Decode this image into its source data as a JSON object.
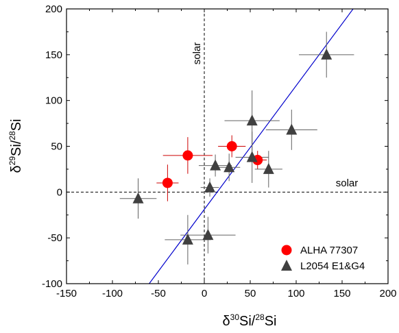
{
  "chart_data": {
    "type": "scatter",
    "xlabel": {
      "delta": "δ",
      "sup1": "30",
      "mid": "Si/",
      "sup2": "28",
      "end": "Si"
    },
    "ylabel": {
      "delta": "δ",
      "sup1": "29",
      "mid": "Si/",
      "sup2": "28",
      "end": "Si"
    },
    "xlim": [
      -150,
      200
    ],
    "ylim": [
      -100,
      200
    ],
    "xticks": [
      -150,
      -100,
      -50,
      0,
      50,
      100,
      150,
      200
    ],
    "yticks": [
      -100,
      -50,
      0,
      50,
      100,
      150,
      200
    ],
    "xtick_labels": [
      "-150",
      "-100",
      "-50",
      "0",
      "50",
      "100",
      "150",
      "200"
    ],
    "ytick_labels": [
      "-100",
      "-50",
      "0",
      "50",
      "100",
      "150",
      "200"
    ],
    "grid": false,
    "legend_position": "bottom-right",
    "annotations": {
      "vertical_solar": "solar",
      "horizontal_solar": "solar"
    },
    "reference_lines": {
      "vertical_x": 0,
      "horizontal_y": 0
    },
    "fit_line": {
      "color": "#0000cc",
      "points": [
        [
          -60,
          -100
        ],
        [
          162,
          200
        ]
      ]
    },
    "series": [
      {
        "name": "ALHA 77307",
        "marker": "circle",
        "color": "#ff0000",
        "error_color": "#cc0000",
        "points": [
          {
            "x": -40,
            "y": 10,
            "xerr": 12,
            "yerr": 20
          },
          {
            "x": -18,
            "y": 40,
            "xerr": 27,
            "yerr": 20
          },
          {
            "x": 30,
            "y": 50,
            "xerr": 15,
            "yerr": 12
          },
          {
            "x": 58,
            "y": 35,
            "xerr": 10,
            "yerr": 10
          }
        ]
      },
      {
        "name": "L2054 E1&G4",
        "marker": "triangle",
        "color": "#404040",
        "error_color": "#606060",
        "points": [
          {
            "x": -72,
            "y": -7,
            "xerr": 20,
            "yerr": 22
          },
          {
            "x": -18,
            "y": -52,
            "xerr": 25,
            "yerr": 27
          },
          {
            "x": 4,
            "y": -47,
            "xerr": 30,
            "yerr": 20
          },
          {
            "x": 6,
            "y": 5,
            "xerr": 10,
            "yerr": 10
          },
          {
            "x": 12,
            "y": 29,
            "xerr": 18,
            "yerr": 12
          },
          {
            "x": 27,
            "y": 27,
            "xerr": 12,
            "yerr": 15
          },
          {
            "x": 52,
            "y": 78,
            "xerr": 30,
            "yerr": 33
          },
          {
            "x": 52,
            "y": 38,
            "xerr": 18,
            "yerr": 28
          },
          {
            "x": 70,
            "y": 25,
            "xerr": 15,
            "yerr": 20
          },
          {
            "x": 95,
            "y": 68,
            "xerr": 28,
            "yerr": 22
          },
          {
            "x": 133,
            "y": 150,
            "xerr": 30,
            "yerr": 25
          }
        ]
      }
    ]
  }
}
